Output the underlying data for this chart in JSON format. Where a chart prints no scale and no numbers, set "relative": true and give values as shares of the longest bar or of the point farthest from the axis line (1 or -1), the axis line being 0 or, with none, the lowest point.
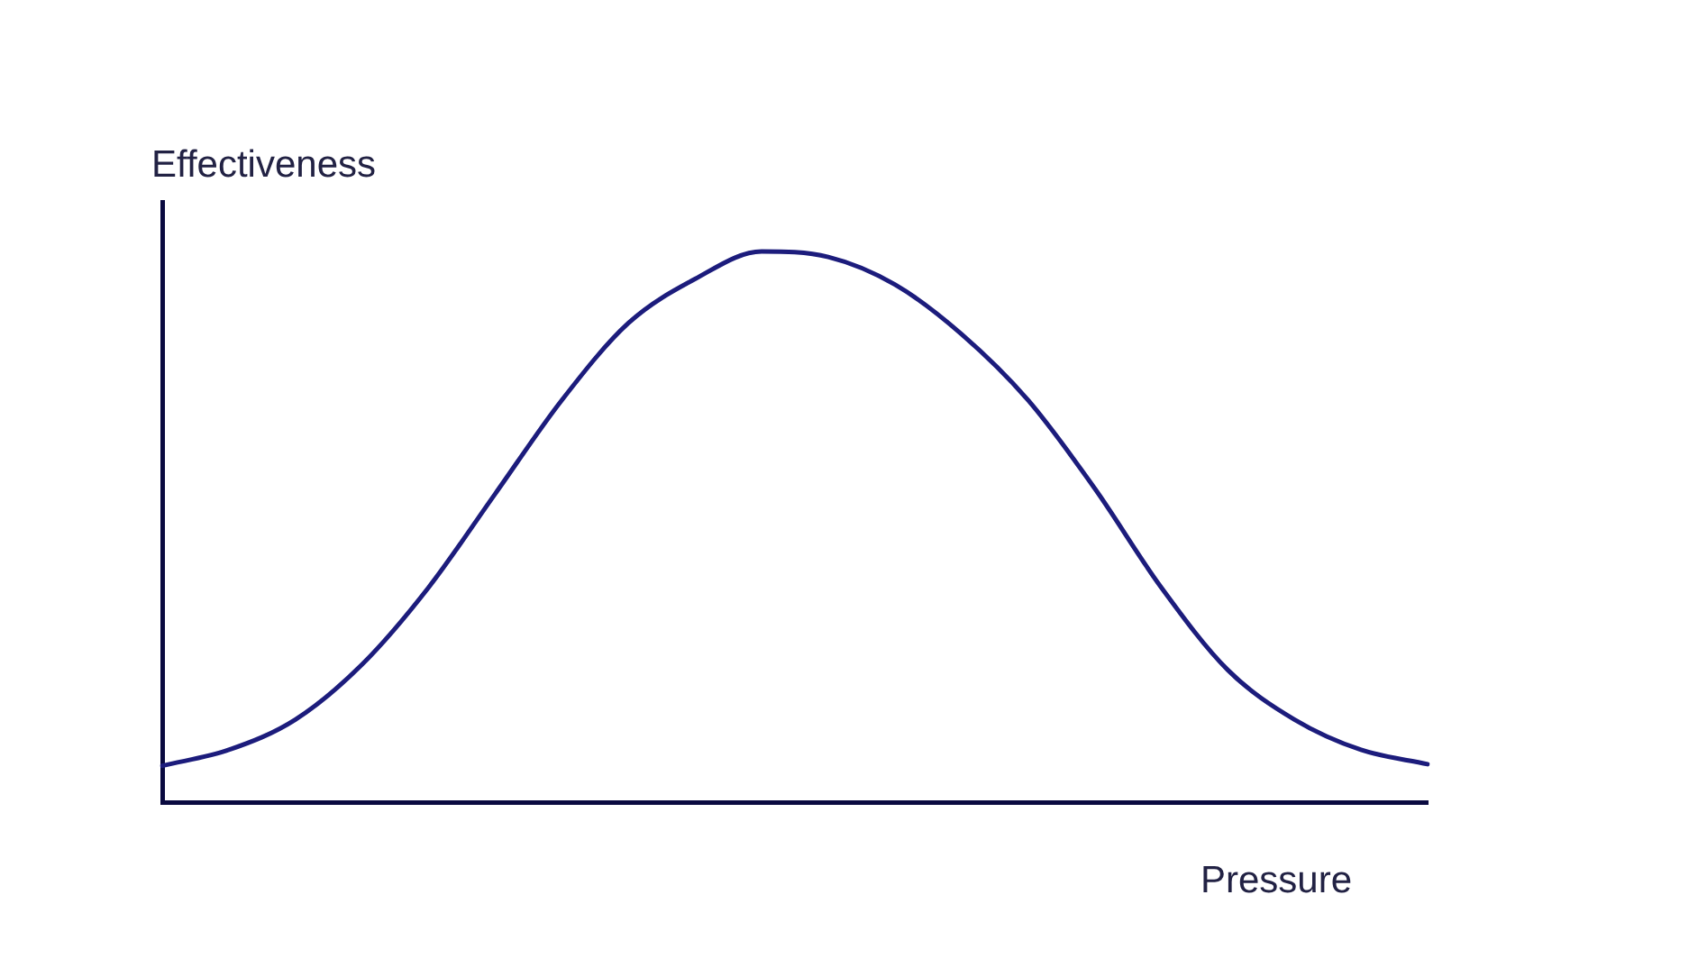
{
  "chart_data": {
    "type": "line",
    "relative": true,
    "xlabel": "Pressure",
    "ylabel": "Effectiveness",
    "categories": [
      null,
      null,
      null,
      null,
      null,
      null,
      null,
      null,
      null,
      null,
      null,
      null,
      null,
      null,
      null,
      null,
      null,
      null,
      null,
      null
    ],
    "series": [
      {
        "color": "#1c1c7c",
        "values": [
          0.066,
          0.095,
          0.15,
          0.25,
          0.39,
          0.56,
          0.73,
          0.87,
          0.95,
          1,
          0.99,
          0.94,
          0.85,
          0.73,
          0.57,
          0.39,
          0.24,
          0.15,
          0.095,
          0.069
        ]
      }
    ],
    "marker": "none",
    "line_style": "solid",
    "grid": false,
    "legend": false
  }
}
